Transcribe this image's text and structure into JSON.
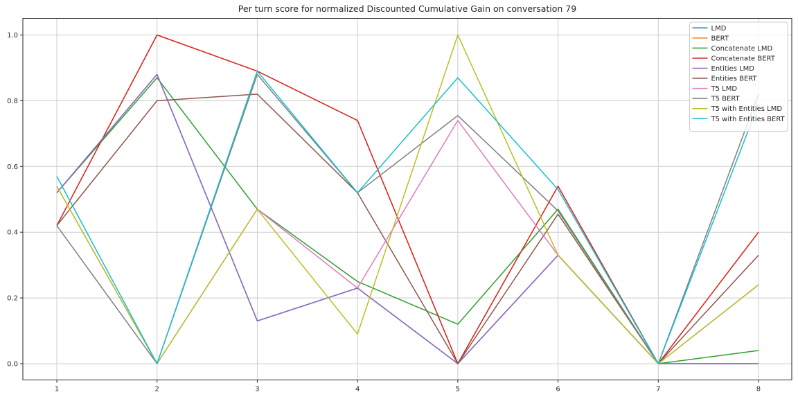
{
  "figure": {
    "background": "#ffffff",
    "grid_color": "#cccccc",
    "spine_color": "#262626",
    "legend_border_color": "#cccccc",
    "legend_background": "#ffffff"
  },
  "chart_data": {
    "type": "line",
    "title": "Per turn score for normalized Discounted Cumulative Gain on conversation 79",
    "xlabel": "",
    "ylabel": "",
    "x": [
      1,
      2,
      3,
      4,
      5,
      6,
      7,
      8
    ],
    "x_tick_labels": [
      "1",
      "2",
      "3",
      "4",
      "5",
      "6",
      "7",
      "8"
    ],
    "y_ticks": [
      0.0,
      0.2,
      0.4,
      0.6,
      0.8,
      1.0
    ],
    "y_tick_labels": [
      "0.0",
      "0.2",
      "0.4",
      "0.6",
      "0.8",
      "1.0"
    ],
    "xlim": [
      0.66,
      8.34
    ],
    "ylim": [
      -0.05,
      1.05
    ],
    "grid": true,
    "legend_position": "upper right",
    "series": [
      {
        "name": "LMD",
        "color": "#1f77b4",
        "values": [
          0.52,
          0.88,
          0.13,
          0.23,
          0.0,
          0.33,
          0.0,
          0.0
        ]
      },
      {
        "name": "BERT",
        "color": "#ff7f0e",
        "values": [
          0.42,
          1.0,
          0.89,
          0.74,
          0.0,
          0.54,
          0.0,
          0.4
        ]
      },
      {
        "name": "Concatenate LMD",
        "color": "#2ca02c",
        "values": [
          0.52,
          0.87,
          0.47,
          0.25,
          0.12,
          0.47,
          0.0,
          0.04
        ]
      },
      {
        "name": "Concatenate BERT",
        "color": "#d62728",
        "values": [
          0.42,
          1.0,
          0.89,
          0.74,
          0.0,
          0.54,
          0.0,
          0.4
        ]
      },
      {
        "name": "Entities LMD",
        "color": "#9467bd",
        "values": [
          0.52,
          0.88,
          0.13,
          0.23,
          0.0,
          0.33,
          0.0,
          0.0
        ]
      },
      {
        "name": "Entities BERT",
        "color": "#8c564b",
        "values": [
          0.42,
          0.8,
          0.82,
          0.52,
          0.0,
          0.455,
          0.0,
          0.33
        ]
      },
      {
        "name": "T5 LMD",
        "color": "#e377c2",
        "values": [
          0.54,
          0.0,
          0.47,
          0.23,
          0.74,
          0.33,
          0.0,
          0.24
        ]
      },
      {
        "name": "T5 BERT",
        "color": "#7f7f7f",
        "values": [
          0.42,
          0.0,
          0.88,
          0.52,
          0.755,
          0.465,
          0.0,
          0.82
        ]
      },
      {
        "name": "T5 with Entities LMD",
        "color": "#bcbd22",
        "values": [
          0.54,
          0.0,
          0.47,
          0.09,
          1.0,
          0.33,
          0.0,
          0.24
        ]
      },
      {
        "name": "T5 with Entities BERT",
        "color": "#17becf",
        "values": [
          0.57,
          0.0,
          0.89,
          0.52,
          0.87,
          0.53,
          0.0,
          0.79
        ]
      }
    ]
  }
}
